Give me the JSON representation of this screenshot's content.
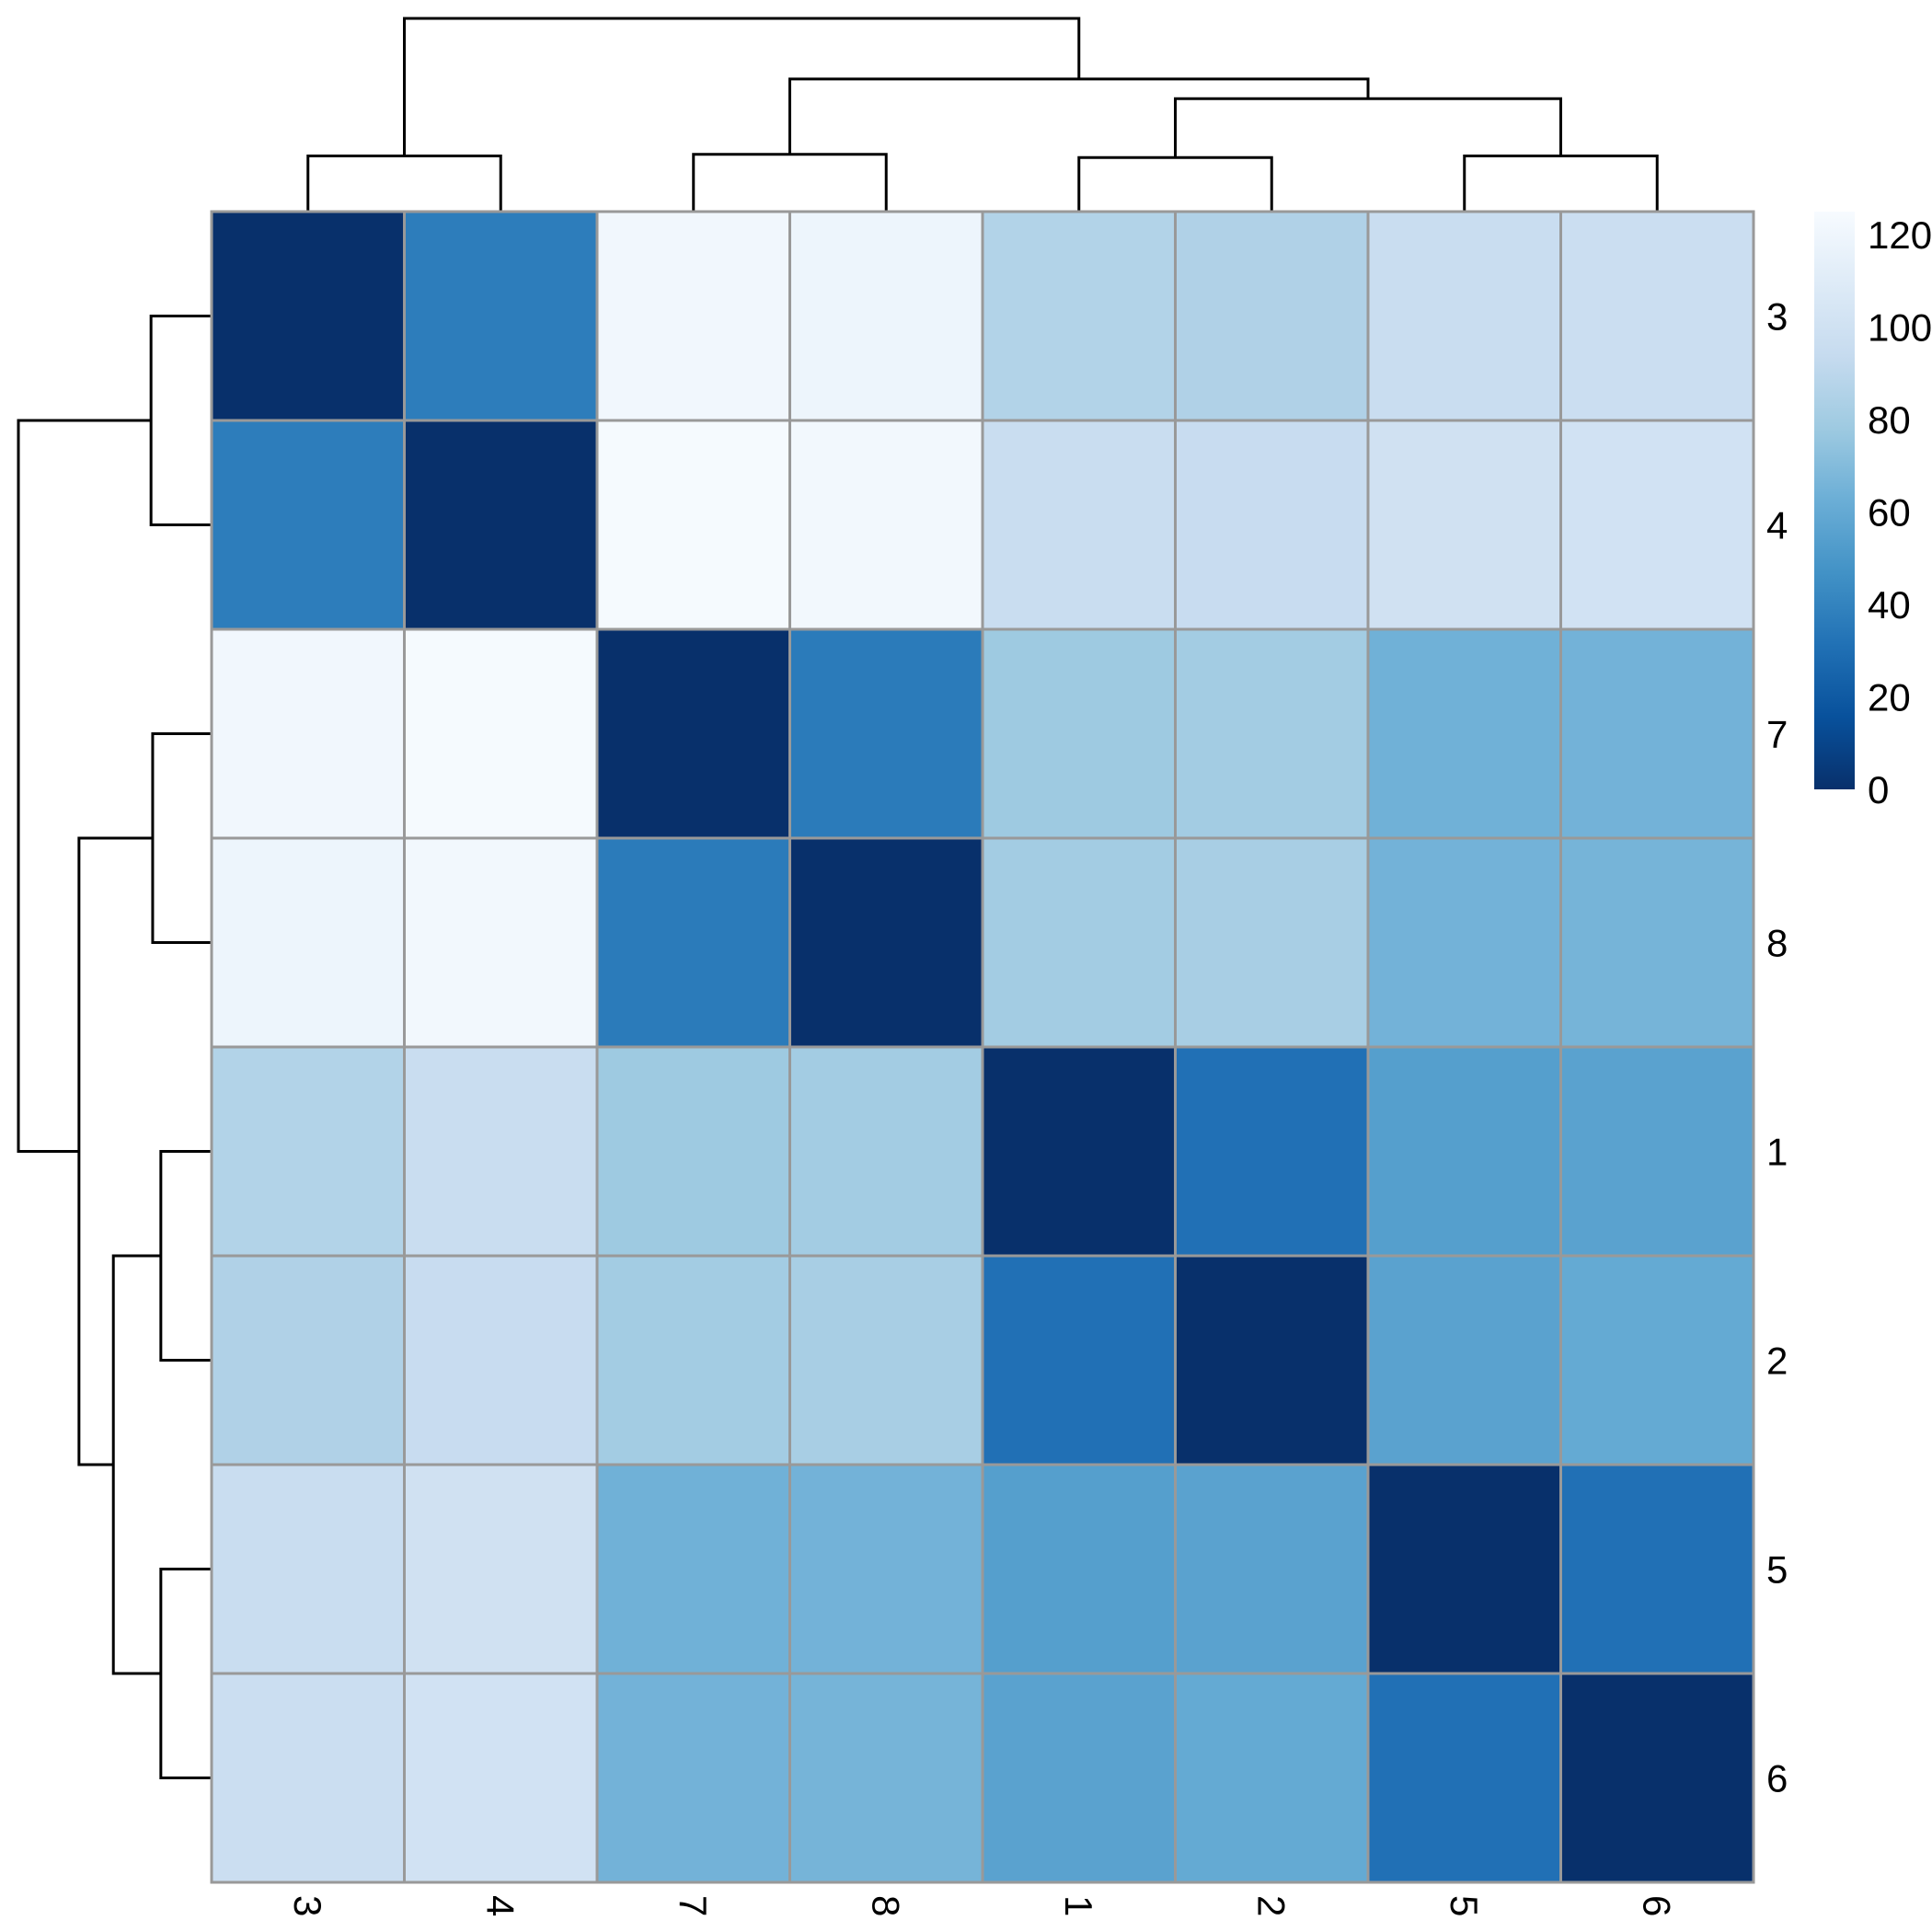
{
  "chart_data": {
    "type": "heatmap",
    "title": "",
    "xlabel": "",
    "ylabel": "",
    "row_labels": [
      "3",
      "4",
      "7",
      "8",
      "1",
      "2",
      "5",
      "6"
    ],
    "col_labels": [
      "3",
      "4",
      "7",
      "8",
      "1",
      "2",
      "5",
      "6"
    ],
    "values": [
      [
        0,
        37,
        121,
        119,
        86,
        85,
        96,
        97
      ],
      [
        37,
        0,
        124,
        122,
        96,
        95,
        100,
        101
      ],
      [
        121,
        124,
        0,
        36,
        78,
        80,
        64,
        65
      ],
      [
        119,
        122,
        36,
        0,
        80,
        82,
        65,
        66
      ],
      [
        86,
        96,
        78,
        80,
        0,
        31,
        54,
        56
      ],
      [
        85,
        95,
        80,
        82,
        31,
        0,
        56,
        60
      ],
      [
        96,
        100,
        64,
        65,
        54,
        56,
        0,
        31
      ],
      [
        97,
        101,
        65,
        66,
        56,
        60,
        31,
        0
      ]
    ],
    "colorbar": {
      "min": 0,
      "max": 125,
      "ticks": [
        "0",
        "20",
        "40",
        "60",
        "80",
        "100",
        "120"
      ],
      "colors": [
        "#08306B",
        "#08519C",
        "#2171B5",
        "#4292C6",
        "#6BAED6",
        "#9ECAE1",
        "#C6DBEF",
        "#DEEBF7",
        "#F7FBFF"
      ],
      "placement": "right"
    },
    "cell_border_color": "#999999",
    "dendrogram_rows": {
      "order": [
        3,
        4,
        7,
        8,
        1,
        2,
        5,
        6
      ],
      "merges": [
        {
          "a": 0,
          "b": 1,
          "height": 37
        },
        {
          "a": 2,
          "b": 3,
          "height": 36
        },
        {
          "a": 4,
          "b": 5,
          "height": 31
        },
        {
          "a": 6,
          "b": 7,
          "height": 31
        },
        {
          "a": "m2",
          "b": "m3",
          "height": 60
        },
        {
          "a": "m1",
          "b": "m4",
          "height": 81
        },
        {
          "a": "m0",
          "b": "m5",
          "height": 118
        }
      ]
    },
    "dendrogram_cols": {
      "order": [
        3,
        4,
        7,
        8,
        1,
        2,
        5,
        6
      ],
      "merges": [
        {
          "a": 0,
          "b": 1,
          "height": 34
        },
        {
          "a": 2,
          "b": 3,
          "height": 35
        },
        {
          "a": 4,
          "b": 5,
          "height": 33
        },
        {
          "a": 6,
          "b": 7,
          "height": 34
        },
        {
          "a": "m2",
          "b": "m3",
          "height": 69
        },
        {
          "a": "m1",
          "b": "m4",
          "height": 81
        },
        {
          "a": "m0",
          "b": "m5",
          "height": 118
        }
      ]
    }
  }
}
